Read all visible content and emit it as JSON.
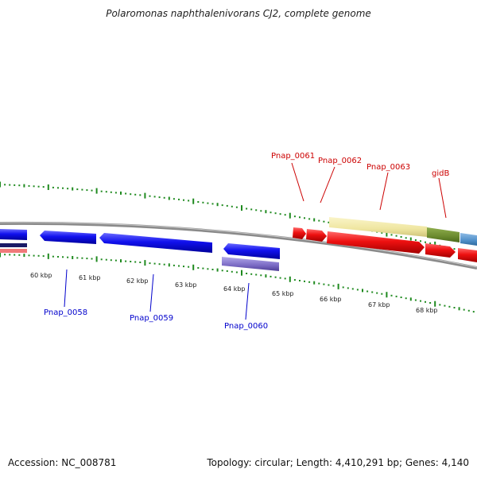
{
  "title": "Polaromonas naphthalenivorans CJ2, complete genome",
  "accession": "Accession: NC_008781",
  "topology": "Topology: circular; Length: 4,410,291 bp; Genes: 4,140",
  "colors": {
    "backbone": "#8a8a8a",
    "tick": "#1f8a1f",
    "forward_gene": "#ee1111",
    "reverse_gene": "#1111ee",
    "forward_label": "#cc0000",
    "reverse_label": "#0000cc",
    "product_yellow": "#efe6a0",
    "product_olive": "#6b8a2e",
    "product_steel": "#4f8fc8",
    "product_purple": "#7a6ac4"
  },
  "kbp_labels": [
    "60 kbp",
    "61 kbp",
    "62 kbp",
    "63 kbp",
    "64 kbp",
    "65 kbp",
    "66 kbp",
    "67 kbp",
    "68 kbp"
  ],
  "forward_genes": [
    "Pnap_0061",
    "Pnap_0062",
    "Pnap_0063",
    "gidB"
  ],
  "reverse_genes": [
    "Pnap_0058",
    "Pnap_0059",
    "Pnap_0060"
  ]
}
